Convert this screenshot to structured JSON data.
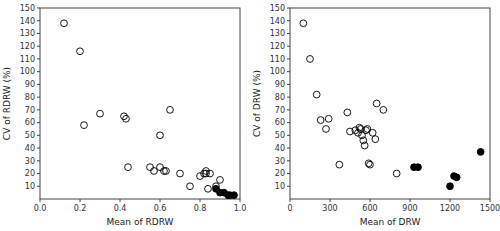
{
  "chart_data": [
    {
      "type": "scatter",
      "xlabel": "Mean of RDRW",
      "ylabel": "CV of RDRW (%)",
      "xlim": [
        0.0,
        1.0
      ],
      "ylim": [
        0,
        150
      ],
      "xticks": [
        {
          "value": 0.0,
          "label": "0.0"
        },
        0.2,
        0.4,
        0.6,
        0.8,
        {
          "value": 1.0,
          "label": "1.0"
        }
      ],
      "yticks": [
        10,
        20,
        30,
        40,
        50,
        60,
        70,
        80,
        90,
        100,
        110,
        120,
        130,
        140,
        150
      ],
      "grid": false,
      "series": [
        {
          "marker": "open-circle",
          "color": "black",
          "x": [
            0.12,
            0.2,
            0.22,
            0.3,
            0.42,
            0.43,
            0.44,
            0.55,
            0.57,
            0.6,
            0.6,
            0.62,
            0.63,
            0.65,
            0.7,
            0.75,
            0.8,
            0.82,
            0.83,
            0.83,
            0.84,
            0.85,
            0.88,
            0.9
          ],
          "values": [
            138,
            116,
            58,
            67,
            65,
            63,
            25,
            25,
            22,
            25,
            50,
            22,
            22,
            70,
            20,
            10,
            18,
            20,
            20,
            22,
            8,
            20,
            10,
            15
          ]
        },
        {
          "marker": "circle",
          "color": "black",
          "x": [
            0.88,
            0.9,
            0.92,
            0.94,
            0.95,
            0.97
          ],
          "values": [
            8,
            5,
            5,
            3,
            3,
            3
          ]
        }
      ]
    },
    {
      "type": "scatter",
      "xlabel": "Mean of DRW",
      "ylabel": "CV of DRW (%)",
      "xlim": [
        0,
        1500
      ],
      "ylim": [
        0,
        150
      ],
      "xticks": [
        0,
        300,
        600,
        900,
        1200,
        1500
      ],
      "yticks": [
        10,
        20,
        30,
        40,
        50,
        60,
        70,
        80,
        90,
        100,
        110,
        120,
        130,
        140,
        150
      ],
      "grid": false,
      "series": [
        {
          "marker": "open-circle",
          "color": "black",
          "x": [
            100,
            150,
            200,
            230,
            270,
            290,
            370,
            430,
            450,
            490,
            510,
            520,
            530,
            540,
            550,
            560,
            570,
            580,
            590,
            600,
            620,
            640,
            650,
            700,
            800
          ],
          "values": [
            138,
            110,
            82,
            62,
            55,
            63,
            27,
            68,
            53,
            54,
            52,
            56,
            55,
            50,
            46,
            42,
            54,
            55,
            28,
            27,
            52,
            47,
            75,
            70,
            20
          ]
        },
        {
          "marker": "circle",
          "color": "black",
          "x": [
            930,
            960,
            1200,
            1230,
            1250,
            1430
          ],
          "values": [
            25,
            25,
            10,
            18,
            17,
            37
          ]
        }
      ]
    }
  ]
}
